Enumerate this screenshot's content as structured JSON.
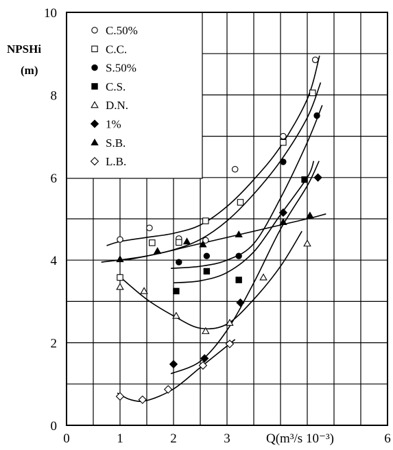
{
  "chart_data": {
    "type": "scatter",
    "title": "",
    "xlabel": "Q(m³/s 10⁻³)",
    "ylabel_line1": "NPSHi",
    "ylabel_line2": "(m)",
    "xlim": [
      0,
      6
    ],
    "ylim": [
      0,
      10
    ],
    "xticks": [
      {
        "value": 0,
        "label": "0"
      },
      {
        "value": 1,
        "label": "1"
      },
      {
        "value": 2,
        "label": "2"
      },
      {
        "value": 3,
        "label": "3"
      },
      {
        "value": 6,
        "label": "6"
      }
    ],
    "yticks": [
      {
        "value": 0,
        "label": "0"
      },
      {
        "value": 2,
        "label": "2"
      },
      {
        "value": 4,
        "label": "4"
      },
      {
        "value": 6,
        "label": "6"
      },
      {
        "value": 8,
        "label": "8"
      },
      {
        "value": 10,
        "label": "10"
      }
    ],
    "grid": true,
    "legend_position": "top-left",
    "series": [
      {
        "name": "C.50%",
        "marker": "circle-open",
        "points": [
          [
            1.0,
            4.5
          ],
          [
            1.55,
            4.78
          ],
          [
            2.1,
            4.52
          ],
          [
            2.6,
            4.48
          ],
          [
            3.15,
            6.2
          ],
          [
            4.05,
            7.0
          ],
          [
            4.65,
            8.85
          ]
        ],
        "curve": [
          [
            0.75,
            4.35
          ],
          [
            1.0,
            4.45
          ],
          [
            1.5,
            4.55
          ],
          [
            2.0,
            4.65
          ],
          [
            2.5,
            4.85
          ],
          [
            3.0,
            5.3
          ],
          [
            3.5,
            5.95
          ],
          [
            4.0,
            6.75
          ],
          [
            4.5,
            7.9
          ],
          [
            4.73,
            8.95
          ]
        ]
      },
      {
        "name": "C.C.",
        "marker": "square-open",
        "points": [
          [
            1.0,
            3.58
          ],
          [
            1.6,
            4.42
          ],
          [
            2.1,
            4.43
          ],
          [
            2.6,
            4.95
          ],
          [
            3.25,
            5.4
          ],
          [
            4.05,
            6.85
          ],
          [
            4.6,
            8.05
          ]
        ],
        "curve": [
          [
            1.1,
            4.0
          ],
          [
            1.5,
            4.1
          ],
          [
            2.0,
            4.25
          ],
          [
            2.5,
            4.5
          ],
          [
            3.0,
            4.95
          ],
          [
            3.5,
            5.6
          ],
          [
            4.0,
            6.4
          ],
          [
            4.5,
            7.45
          ],
          [
            4.75,
            8.3
          ]
        ]
      },
      {
        "name": "S.50%",
        "marker": "circle-filled",
        "points": [
          [
            2.1,
            3.95
          ],
          [
            2.62,
            4.1
          ],
          [
            3.22,
            4.1
          ],
          [
            4.05,
            6.38
          ],
          [
            4.68,
            7.5
          ]
        ],
        "curve": [
          [
            1.95,
            3.8
          ],
          [
            2.5,
            3.85
          ],
          [
            3.0,
            4.0
          ],
          [
            3.5,
            4.4
          ],
          [
            4.0,
            5.5
          ],
          [
            4.5,
            6.85
          ],
          [
            4.78,
            7.75
          ]
        ]
      },
      {
        "name": "C.S.",
        "marker": "square-filled",
        "points": [
          [
            2.05,
            3.25
          ],
          [
            2.62,
            3.73
          ],
          [
            3.22,
            3.52
          ],
          [
            4.45,
            5.95
          ]
        ],
        "curve": [
          [
            2.0,
            3.45
          ],
          [
            2.5,
            3.5
          ],
          [
            3.0,
            3.7
          ],
          [
            3.5,
            4.2
          ],
          [
            4.0,
            5.1
          ],
          [
            4.5,
            6.0
          ],
          [
            4.62,
            6.4
          ]
        ]
      },
      {
        "name": "D.N.",
        "marker": "triangle-open",
        "points": [
          [
            1.0,
            3.35
          ],
          [
            1.45,
            3.25
          ],
          [
            2.05,
            2.65
          ],
          [
            2.6,
            2.28
          ],
          [
            3.05,
            2.48
          ],
          [
            3.68,
            3.58
          ],
          [
            4.5,
            4.4
          ]
        ],
        "curve": [
          [
            0.95,
            3.65
          ],
          [
            1.5,
            3.05
          ],
          [
            2.0,
            2.65
          ],
          [
            2.5,
            2.35
          ],
          [
            3.0,
            2.45
          ],
          [
            3.5,
            3.05
          ],
          [
            4.0,
            3.85
          ],
          [
            4.4,
            4.7
          ]
        ]
      },
      {
        "name": "1%",
        "marker": "diamond-filled",
        "points": [
          [
            2.0,
            1.48
          ],
          [
            2.58,
            1.62
          ],
          [
            3.25,
            2.97
          ],
          [
            4.05,
            5.15
          ],
          [
            4.7,
            6.0
          ]
        ],
        "curve": [
          [
            1.95,
            1.25
          ],
          [
            2.5,
            1.55
          ],
          [
            3.0,
            2.3
          ],
          [
            3.5,
            3.45
          ],
          [
            4.0,
            4.75
          ],
          [
            4.5,
            5.8
          ],
          [
            4.72,
            6.4
          ]
        ]
      },
      {
        "name": "S.B.",
        "marker": "triangle-filled",
        "points": [
          [
            1.0,
            4.02
          ],
          [
            1.7,
            4.22
          ],
          [
            2.25,
            4.45
          ],
          [
            2.55,
            4.38
          ],
          [
            3.22,
            4.62
          ],
          [
            4.05,
            4.92
          ],
          [
            4.55,
            5.08
          ]
        ],
        "curve": [
          [
            0.65,
            3.95
          ],
          [
            1.5,
            4.1
          ],
          [
            2.5,
            4.4
          ],
          [
            3.5,
            4.7
          ],
          [
            4.5,
            5.0
          ],
          [
            4.85,
            5.12
          ]
        ]
      },
      {
        "name": "L.B.",
        "marker": "diamond-open",
        "points": [
          [
            1.0,
            0.7
          ],
          [
            1.42,
            0.62
          ],
          [
            1.9,
            0.87
          ],
          [
            2.55,
            1.45
          ],
          [
            3.05,
            1.97
          ]
        ],
        "curve": [
          [
            0.95,
            0.78
          ],
          [
            1.2,
            0.62
          ],
          [
            1.5,
            0.6
          ],
          [
            2.0,
            0.88
          ],
          [
            2.5,
            1.4
          ],
          [
            3.0,
            1.92
          ],
          [
            3.15,
            2.08
          ]
        ]
      }
    ]
  }
}
